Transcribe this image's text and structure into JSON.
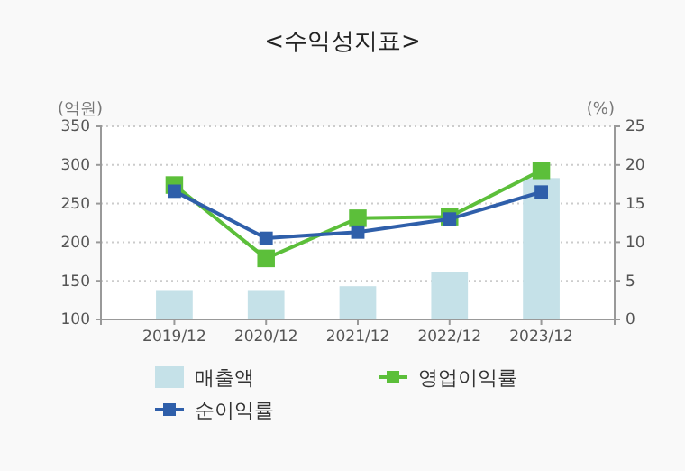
{
  "chart_data": {
    "type": "bar",
    "title": "<수익성지표>",
    "ylabel": "(억원)",
    "y2label": "(%)",
    "categories": [
      "2019/12",
      "2020/12",
      "2021/12",
      "2022/12",
      "2023/12"
    ],
    "series": [
      {
        "name": "매출액",
        "color": "#c5e1e8",
        "values": [
          138,
          138,
          143,
          161,
          283
        ]
      },
      {
        "name": "영업이익률",
        "type": "line",
        "axis": "y2",
        "color": "#5cbf3a",
        "values": [
          17.4,
          7.9,
          13.1,
          13.3,
          19.3
        ]
      },
      {
        "name": "순이익률",
        "type": "line",
        "axis": "y2",
        "color": "#2f5faa",
        "values": [
          16.6,
          10.5,
          11.3,
          13.0,
          16.5
        ]
      }
    ],
    "ylim": [
      100,
      350
    ],
    "yticks": [
      100,
      150,
      200,
      250,
      300,
      350
    ],
    "y2lim": [
      0,
      25
    ],
    "y2ticks": [
      0,
      5,
      10,
      15,
      20,
      25
    ],
    "grid": "y",
    "legend": "bottom",
    "marker": "square",
    "line_style": "solid"
  }
}
